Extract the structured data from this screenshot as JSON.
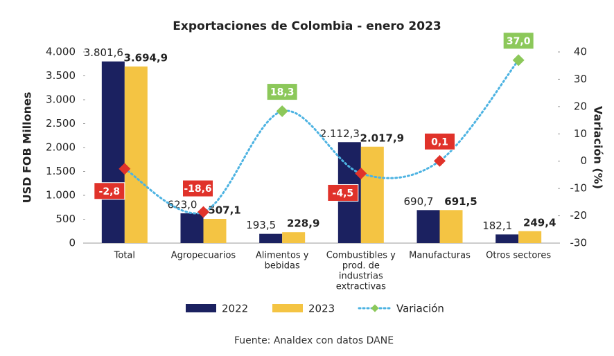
{
  "chart_data": {
    "type": "bar_line",
    "title": "Exportaciones de Colombia - enero 2023",
    "ylabel": "USD FOB Millones",
    "y2label": "Variación (%)",
    "source": "Fuente: Analdex con datos DANE",
    "categories": [
      [
        "Total"
      ],
      [
        "Agropecuarios"
      ],
      [
        "Alimentos y",
        "bebidas"
      ],
      [
        "Combustibles y",
        "prod. de",
        "industrias",
        "extractivas"
      ],
      [
        "Manufacturas"
      ],
      [
        "Otros sectores"
      ]
    ],
    "ylim": [
      0,
      4000
    ],
    "yticks": [
      0,
      500,
      {
        "value": 1000,
        "label": "1.000"
      },
      {
        "value": 1500,
        "label": "1.500"
      },
      {
        "value": 2000,
        "label": "2.000"
      },
      {
        "value": 2500,
        "label": "2.500"
      },
      {
        "value": 3000,
        "label": "3.000"
      },
      {
        "value": 3500,
        "label": "3.500"
      },
      {
        "value": 4000,
        "label": "4.000"
      }
    ],
    "y2lim": [
      -30,
      40
    ],
    "y2ticks": [
      -30,
      -20,
      -10,
      0,
      10,
      20,
      30,
      40
    ],
    "series": [
      {
        "name": "2022",
        "type": "bar",
        "color": "#1b2160",
        "values": [
          3801.6,
          623.0,
          193.5,
          2112.3,
          690.7,
          182.1
        ],
        "value_labels": [
          "3.801,6",
          "623,0",
          "193,5",
          "2.112,3",
          "690,7",
          "182,1"
        ]
      },
      {
        "name": "2023",
        "type": "bar",
        "color": "#f4c443",
        "values": [
          3694.9,
          507.1,
          228.9,
          2017.9,
          691.5,
          249.4
        ],
        "value_labels": [
          "3.694,9",
          "507,1",
          "228,9",
          "2.017,9",
          "691,5",
          "249,4"
        ]
      },
      {
        "name": "Variación",
        "type": "line",
        "axis": "y2",
        "color": "#4db3e2",
        "values": [
          -2.8,
          -18.6,
          18.3,
          -4.5,
          0.1,
          37.0
        ],
        "value_labels": [
          "-2,8",
          "-18,6",
          "18,3",
          "-4,5",
          "0,1",
          "37,0"
        ],
        "marker_colors": [
          "#e0322a",
          "#e0322a",
          "#8cc85a",
          "#e0322a",
          "#e0322a",
          "#8cc85a"
        ]
      }
    ]
  }
}
